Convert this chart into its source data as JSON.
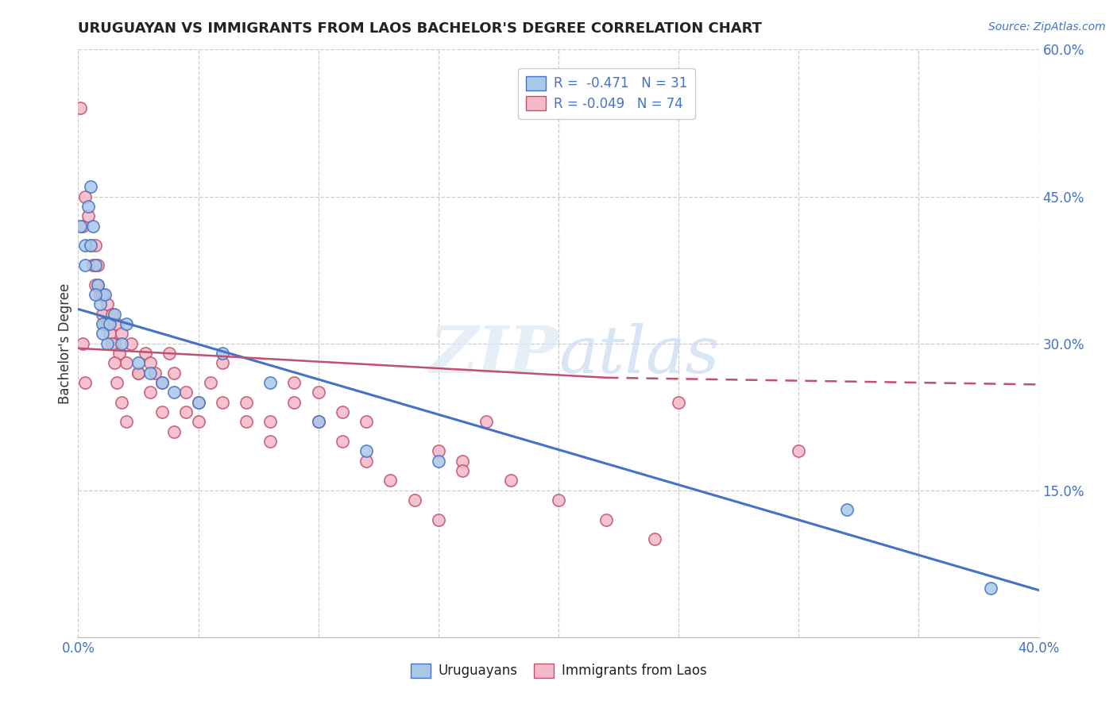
{
  "title": "URUGUAYAN VS IMMIGRANTS FROM LAOS BACHELOR'S DEGREE CORRELATION CHART",
  "source": "Source: ZipAtlas.com",
  "ylabel": "Bachelor's Degree",
  "legend_r1": "R =  -0.471   N = 31",
  "legend_r2": "R = -0.049   N = 74",
  "blue_color": "#a8c8e8",
  "pink_color": "#f4b8c8",
  "blue_line_color": "#4472c4",
  "pink_line_color": "#c05070",
  "blue_trend": [
    0.0,
    0.335,
    0.4,
    0.048
  ],
  "pink_trend_solid": [
    0.0,
    0.295,
    0.22,
    0.265
  ],
  "pink_trend_dash": [
    0.22,
    0.265,
    0.4,
    0.258
  ],
  "xlim": [
    0.0,
    0.4
  ],
  "ylim": [
    0.0,
    0.6
  ],
  "blue_x": [
    0.001,
    0.003,
    0.004,
    0.005,
    0.006,
    0.007,
    0.008,
    0.009,
    0.01,
    0.011,
    0.012,
    0.013,
    0.015,
    0.018,
    0.02,
    0.025,
    0.03,
    0.035,
    0.04,
    0.05,
    0.06,
    0.08,
    0.1,
    0.12,
    0.15,
    0.32,
    0.38,
    0.003,
    0.005,
    0.007,
    0.01
  ],
  "blue_y": [
    0.42,
    0.4,
    0.44,
    0.46,
    0.42,
    0.38,
    0.36,
    0.34,
    0.32,
    0.35,
    0.3,
    0.32,
    0.33,
    0.3,
    0.32,
    0.28,
    0.27,
    0.26,
    0.25,
    0.24,
    0.29,
    0.26,
    0.22,
    0.19,
    0.18,
    0.13,
    0.05,
    0.38,
    0.4,
    0.35,
    0.31
  ],
  "pink_x": [
    0.001,
    0.002,
    0.003,
    0.004,
    0.005,
    0.006,
    0.007,
    0.008,
    0.009,
    0.01,
    0.011,
    0.012,
    0.013,
    0.014,
    0.015,
    0.016,
    0.017,
    0.018,
    0.02,
    0.022,
    0.025,
    0.028,
    0.03,
    0.032,
    0.035,
    0.038,
    0.04,
    0.045,
    0.05,
    0.055,
    0.06,
    0.07,
    0.08,
    0.09,
    0.1,
    0.11,
    0.12,
    0.15,
    0.16,
    0.18,
    0.2,
    0.22,
    0.24,
    0.25,
    0.3,
    0.007,
    0.008,
    0.01,
    0.012,
    0.014,
    0.015,
    0.016,
    0.018,
    0.02,
    0.025,
    0.03,
    0.035,
    0.04,
    0.045,
    0.05,
    0.06,
    0.07,
    0.08,
    0.003,
    0.002,
    0.09,
    0.1,
    0.11,
    0.12,
    0.13,
    0.14,
    0.15,
    0.16,
    0.17
  ],
  "pink_y": [
    0.54,
    0.42,
    0.45,
    0.43,
    0.4,
    0.38,
    0.4,
    0.36,
    0.35,
    0.33,
    0.32,
    0.34,
    0.31,
    0.33,
    0.3,
    0.32,
    0.29,
    0.31,
    0.28,
    0.3,
    0.27,
    0.29,
    0.28,
    0.27,
    0.26,
    0.29,
    0.27,
    0.25,
    0.24,
    0.26,
    0.28,
    0.24,
    0.22,
    0.26,
    0.25,
    0.23,
    0.22,
    0.19,
    0.18,
    0.16,
    0.14,
    0.12,
    0.1,
    0.24,
    0.19,
    0.36,
    0.38,
    0.35,
    0.32,
    0.3,
    0.28,
    0.26,
    0.24,
    0.22,
    0.27,
    0.25,
    0.23,
    0.21,
    0.23,
    0.22,
    0.24,
    0.22,
    0.2,
    0.26,
    0.3,
    0.24,
    0.22,
    0.2,
    0.18,
    0.16,
    0.14,
    0.12,
    0.17,
    0.22
  ]
}
